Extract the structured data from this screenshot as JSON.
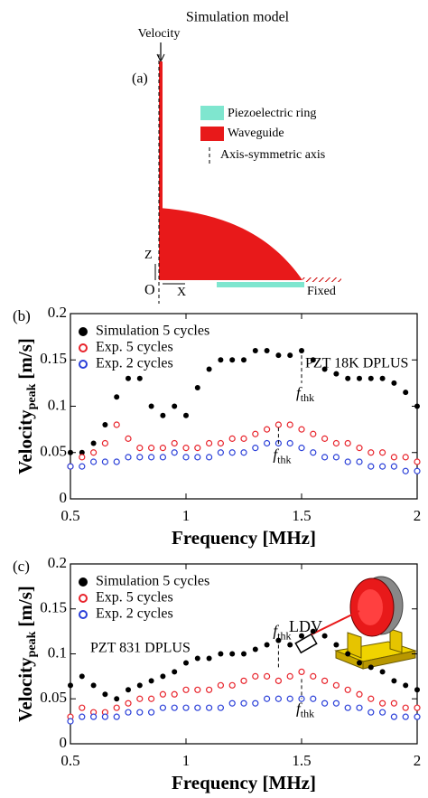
{
  "diagram": {
    "title": "Simulation model",
    "velocity": "Velocity",
    "panel": "(a)",
    "legend": [
      "Piezoelectric ring",
      "Waveguide",
      "Axis-symmetric axis"
    ],
    "z": "Z",
    "origin": "O",
    "x": "X",
    "fixed": "Fixed"
  },
  "chart_data": [
    {
      "type": "scatter",
      "panel": "(b)",
      "annotation": "PZT 18K DPLUS",
      "x_label": "Frequency [MHz]",
      "y_label": "Velocity",
      "y_label_sub": "peak",
      "y_label_unit": "[m/s]",
      "xlim": [
        0.5,
        2
      ],
      "xticks": [
        0.5,
        1,
        1.5,
        2
      ],
      "ylim": [
        0,
        0.2
      ],
      "yticks": [
        0,
        0.05,
        0.1,
        0.15,
        0.2
      ],
      "legend": "upper left",
      "x": [
        0.5,
        0.55,
        0.6,
        0.65,
        0.7,
        0.75,
        0.8,
        0.85,
        0.9,
        0.95,
        1,
        1.05,
        1.1,
        1.15,
        1.2,
        1.25,
        1.3,
        1.35,
        1.4,
        1.45,
        1.5,
        1.55,
        1.6,
        1.65,
        1.7,
        1.75,
        1.8,
        1.85,
        1.9,
        1.95,
        2
      ],
      "series": [
        {
          "name": "Simulation 5 cycles",
          "color": "#000000",
          "marker": "filled",
          "values": [
            0.05,
            0.05,
            0.06,
            0.08,
            0.11,
            0.13,
            0.13,
            0.1,
            0.09,
            0.1,
            0.09,
            0.12,
            0.14,
            0.15,
            0.15,
            0.15,
            0.16,
            0.16,
            0.155,
            0.155,
            0.16,
            0.15,
            0.14,
            0.135,
            0.13,
            0.13,
            0.13,
            0.13,
            0.125,
            0.115,
            0.1
          ]
        },
        {
          "name": "Exp. 5 cycles",
          "color": "#e8232b",
          "marker": "open",
          "values": [
            0.035,
            0.045,
            0.05,
            0.06,
            0.08,
            0.065,
            0.055,
            0.055,
            0.055,
            0.06,
            0.055,
            0.055,
            0.06,
            0.06,
            0.065,
            0.065,
            0.07,
            0.075,
            0.08,
            0.08,
            0.075,
            0.07,
            0.065,
            0.06,
            0.06,
            0.055,
            0.05,
            0.05,
            0.045,
            0.045,
            0.04
          ]
        },
        {
          "name": "Exp. 2 cycles",
          "color": "#2a3fd8",
          "marker": "open",
          "values": [
            0.035,
            0.035,
            0.04,
            0.04,
            0.04,
            0.045,
            0.045,
            0.045,
            0.045,
            0.05,
            0.045,
            0.045,
            0.045,
            0.05,
            0.05,
            0.05,
            0.055,
            0.06,
            0.06,
            0.06,
            0.055,
            0.05,
            0.045,
            0.045,
            0.04,
            0.04,
            0.035,
            0.035,
            0.035,
            0.03,
            0.03
          ]
        }
      ],
      "markers": [
        {
          "x": 1.5,
          "y": [
            0.155,
            0.125
          ],
          "text": "f",
          "sub": "thk",
          "place": "below"
        },
        {
          "x": 1.4,
          "y": [
            0.077,
            0.058
          ],
          "text": "f",
          "sub": "thk",
          "place": "below"
        }
      ]
    },
    {
      "type": "scatter",
      "panel": "(c)",
      "annotation": "PZT 831 DPLUS",
      "device": "LDV",
      "x_label": "Frequency [MHz]",
      "y_label": "Velocity",
      "y_label_sub": "peak",
      "y_label_unit": "[m/s]",
      "xlim": [
        0.5,
        2
      ],
      "xticks": [
        0.5,
        1,
        1.5,
        2
      ],
      "ylim": [
        0,
        0.2
      ],
      "yticks": [
        0,
        0.05,
        0.1,
        0.15,
        0.2
      ],
      "legend": "upper left",
      "x": [
        0.5,
        0.55,
        0.6,
        0.65,
        0.7,
        0.75,
        0.8,
        0.85,
        0.9,
        0.95,
        1,
        1.05,
        1.1,
        1.15,
        1.2,
        1.25,
        1.3,
        1.35,
        1.4,
        1.45,
        1.5,
        1.55,
        1.6,
        1.65,
        1.7,
        1.75,
        1.8,
        1.85,
        1.9,
        1.95,
        2
      ],
      "series": [
        {
          "name": "Simulation 5 cycles",
          "color": "#000000",
          "marker": "filled",
          "values": [
            0.065,
            0.075,
            0.065,
            0.055,
            0.05,
            0.06,
            0.065,
            0.07,
            0.075,
            0.08,
            0.09,
            0.095,
            0.095,
            0.1,
            0.1,
            0.1,
            0.105,
            0.11,
            0.115,
            0.11,
            0.12,
            0.125,
            0.12,
            0.11,
            0.1,
            0.09,
            0.085,
            0.08,
            0.07,
            0.065,
            0.06
          ]
        },
        {
          "name": "Exp. 5 cycles",
          "color": "#e8232b",
          "marker": "open",
          "values": [
            0.03,
            0.04,
            0.035,
            0.035,
            0.04,
            0.045,
            0.05,
            0.05,
            0.055,
            0.055,
            0.06,
            0.06,
            0.06,
            0.065,
            0.065,
            0.07,
            0.075,
            0.075,
            0.07,
            0.075,
            0.08,
            0.075,
            0.07,
            0.065,
            0.06,
            0.055,
            0.05,
            0.045,
            0.045,
            0.04,
            0.04
          ]
        },
        {
          "name": "Exp. 2 cycles",
          "color": "#2a3fd8",
          "marker": "open",
          "values": [
            0.025,
            0.03,
            0.03,
            0.03,
            0.03,
            0.035,
            0.035,
            0.035,
            0.04,
            0.04,
            0.04,
            0.04,
            0.04,
            0.04,
            0.045,
            0.045,
            0.045,
            0.05,
            0.05,
            0.05,
            0.05,
            0.05,
            0.045,
            0.045,
            0.04,
            0.04,
            0.035,
            0.035,
            0.03,
            0.03,
            0.03
          ]
        }
      ],
      "markers": [
        {
          "x": 1.4,
          "y": [
            0.11,
            0.085
          ],
          "text": "f",
          "sub": "thk",
          "place": "above"
        },
        {
          "x": 1.5,
          "y": [
            0.072,
            0.05
          ],
          "text": "f",
          "sub": "thk",
          "place": "below"
        }
      ]
    }
  ]
}
